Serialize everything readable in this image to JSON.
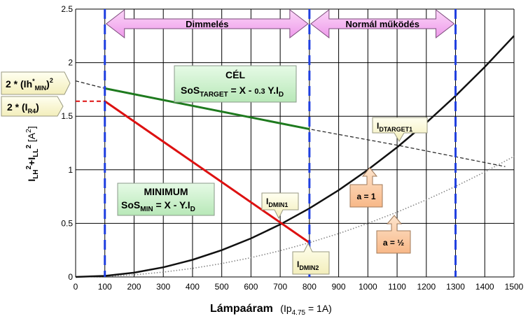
{
  "chart_data": {
    "type": "line",
    "xlim": [
      0,
      1500
    ],
    "ylim": [
      0,
      2.5
    ],
    "x_ticks": [
      0,
      100,
      200,
      300,
      400,
      500,
      600,
      700,
      800,
      900,
      1000,
      1100,
      1200,
      1300,
      1400,
      1500
    ],
    "y_ticks": [
      {
        "value": 0,
        "label": "0"
      },
      {
        "value": 0.5,
        "label": "0.5"
      },
      {
        "value": 1,
        "label": "1"
      },
      {
        "value": 1.5,
        "label": "1.5"
      },
      {
        "value": 2,
        "label": "2"
      },
      {
        "value": 2.5,
        "label": "2.5"
      }
    ],
    "grid": true,
    "xlabel": {
      "main": "Lámpaáram",
      "paren_open": "(Ip",
      "sub": "4.75",
      "tail": " =  1A)"
    },
    "ylabel": {
      "i1": "I",
      "s1": "LH",
      "p1": "2",
      "plus": "+",
      "i2": "I",
      "s2": "LL",
      "p2": "2",
      "unit_a": " [A",
      "unit_p": "2",
      "unit_c": "]"
    },
    "vlines": [
      100,
      800,
      1300
    ],
    "regions": [
      {
        "label": "Dimmelés",
        "from": 100,
        "to": 800
      },
      {
        "label": "Normál működés",
        "from": 800,
        "to": 1300
      }
    ],
    "series": [
      {
        "key": "target",
        "color": "#1e7a1e",
        "style": "solid",
        "x": [
          100,
          800
        ],
        "y": [
          1.76,
          1.38
        ]
      },
      {
        "key": "minimum",
        "color": "#dd1111",
        "style": "solid",
        "x": [
          100,
          800
        ],
        "y": [
          1.64,
          0.32
        ]
      },
      {
        "key": "minimum-lead",
        "color": "#dd1111",
        "style": "dashed",
        "x": [
          0,
          100
        ],
        "y": [
          1.64,
          1.64
        ]
      },
      {
        "key": "target-extension",
        "color": "#222222",
        "style": "dashed",
        "x": [
          0,
          100,
          800,
          1100,
          1470
        ],
        "y": [
          1.83,
          1.76,
          1.38,
          1.23,
          1.03
        ]
      },
      {
        "key": "quadratic-full",
        "color": "#888888",
        "style": "dotted",
        "x": [
          0,
          100,
          200,
          300,
          400,
          500,
          600,
          700,
          800,
          900,
          1000,
          1100,
          1200,
          1300,
          1400,
          1500
        ],
        "y": [
          0,
          0.005,
          0.02,
          0.045,
          0.08,
          0.125,
          0.18,
          0.245,
          0.32,
          0.405,
          0.5,
          0.605,
          0.72,
          0.845,
          0.98,
          1.125
        ]
      },
      {
        "key": "quadratic-half",
        "color": "#111111",
        "style": "solid",
        "x": [
          0,
          100,
          200,
          300,
          400,
          500,
          600,
          700,
          800,
          900,
          1000,
          1100,
          1200,
          1300,
          1400,
          1500
        ],
        "y": [
          0,
          0.01,
          0.04,
          0.09,
          0.16,
          0.25,
          0.36,
          0.49,
          0.64,
          0.81,
          1.0,
          1.21,
          1.44,
          1.69,
          1.96,
          2.25
        ]
      }
    ]
  },
  "callouts": {
    "cel": {
      "title": "CÉL",
      "line_a": "SoS",
      "line_sub": "TARGET",
      "line_b": " = X - ",
      "line_small": "0.3",
      "line_c": " Y.I",
      "line_sub2": "D"
    },
    "minimum": {
      "title": "MINIMUM",
      "line_a": "SoS",
      "line_sub": "MIN",
      "line_b": " = X - Y.I",
      "line_sub2": "D"
    },
    "lh_min": {
      "a": "2 * (Ih",
      "sup": "*",
      "sub": "MIN",
      "b": ")",
      "sup2": "2"
    },
    "r4": {
      "a": "2 * (I",
      "sub": "R4",
      "b": ")"
    },
    "dtarget1": {
      "a": "I",
      "sub": "DTARGET1"
    },
    "dmin1": {
      "a": "I",
      "sub": "DMIN1"
    },
    "dmin2": {
      "a": "I",
      "sub": "DMIN2"
    },
    "a1": "a = 1",
    "ahalf": "a = ½"
  },
  "colors": {
    "green_box": "#ccf0cc",
    "orange_box": "#fccca4",
    "yellow_box": "#fdfbd0",
    "pink_arrow": "#f4aef0",
    "blue_vline": "#1f3fe0"
  }
}
